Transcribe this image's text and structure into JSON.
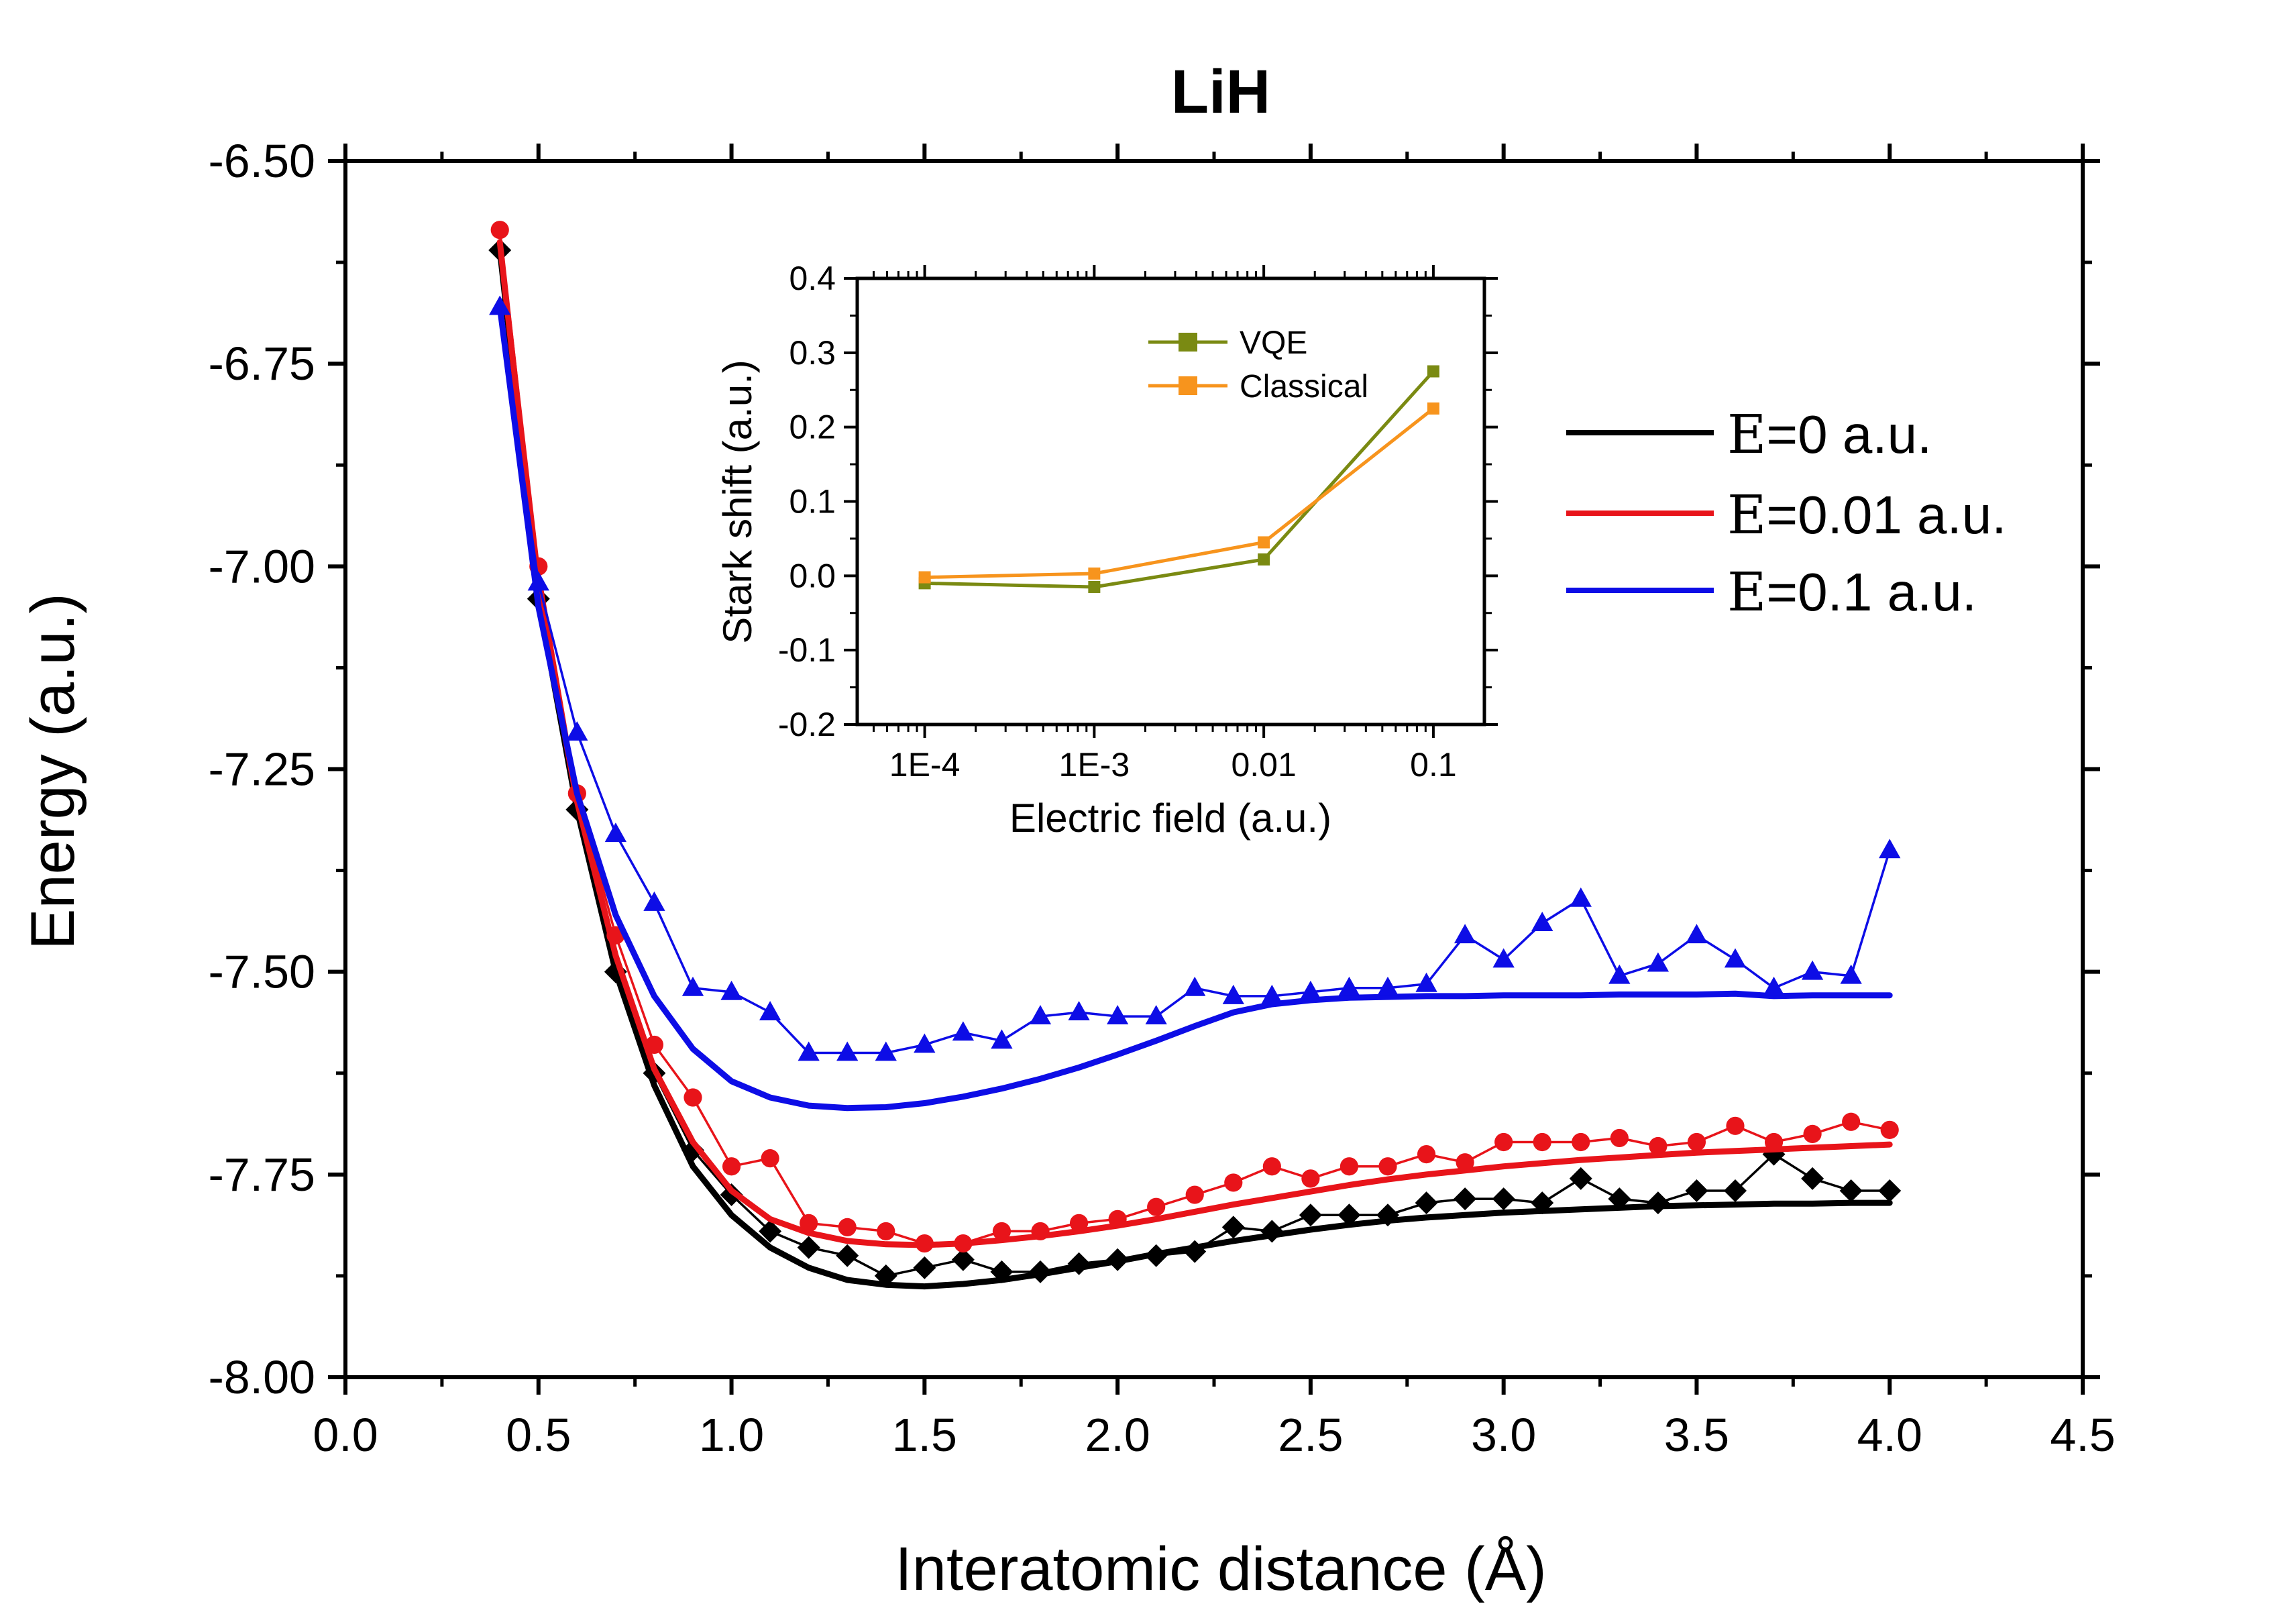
{
  "chart_data": [
    {
      "type": "line",
      "title": "LiH",
      "xlabel": "Interatomic distance (Å)",
      "ylabel": "Energy (a.u.)",
      "xlim": [
        0.0,
        4.5
      ],
      "ylim": [
        -8.0,
        -6.5
      ],
      "xticks": [
        "0.0",
        "0.5",
        "1.0",
        "1.5",
        "2.0",
        "2.5",
        "3.0",
        "3.5",
        "4.0",
        "4.5"
      ],
      "yticks": [
        "-6.50",
        "-6.75",
        "-7.00",
        "-7.25",
        "-7.50",
        "-7.75",
        "-8.00"
      ],
      "legend_position": "right",
      "series": [
        {
          "name": "E=0 a.u.",
          "legend_symbol": "E",
          "legend_text": "=0 a.u.",
          "kind": "exact",
          "color": "#000000",
          "x": [
            0.4,
            0.5,
            0.6,
            0.7,
            0.8,
            0.9,
            1.0,
            1.1,
            1.2,
            1.3,
            1.4,
            1.5,
            1.6,
            1.7,
            1.8,
            1.9,
            2.0,
            2.1,
            2.2,
            2.3,
            2.4,
            2.5,
            2.6,
            2.7,
            2.8,
            2.9,
            3.0,
            3.1,
            3.2,
            3.3,
            3.4,
            3.5,
            3.6,
            3.7,
            3.8,
            3.9,
            4.0
          ],
          "y": [
            -6.61,
            -7.04,
            -7.3,
            -7.5,
            -7.64,
            -7.74,
            -7.8,
            -7.84,
            -7.865,
            -7.88,
            -7.886,
            -7.888,
            -7.885,
            -7.88,
            -7.873,
            -7.865,
            -7.857,
            -7.848,
            -7.84,
            -7.832,
            -7.825,
            -7.818,
            -7.812,
            -7.807,
            -7.803,
            -7.8,
            -7.797,
            -7.795,
            -7.793,
            -7.791,
            -7.789,
            -7.788,
            -7.787,
            -7.786,
            -7.786,
            -7.785,
            -7.785
          ]
        },
        {
          "name": "E=0 VQE",
          "kind": "vqe",
          "marker": "diamond",
          "color": "#000000",
          "x": [
            0.4,
            0.5,
            0.6,
            0.7,
            0.8,
            0.9,
            1.0,
            1.1,
            1.2,
            1.3,
            1.4,
            1.5,
            1.6,
            1.7,
            1.8,
            1.9,
            2.0,
            2.1,
            2.2,
            2.3,
            2.4,
            2.5,
            2.6,
            2.7,
            2.8,
            2.9,
            3.0,
            3.1,
            3.2,
            3.3,
            3.4,
            3.5,
            3.6,
            3.7,
            3.8,
            3.9,
            4.0
          ],
          "y": [
            -6.61,
            -7.04,
            -7.3,
            -7.5,
            -7.625,
            -7.72,
            -7.775,
            -7.82,
            -7.84,
            -7.85,
            -7.875,
            -7.865,
            -7.855,
            -7.87,
            -7.87,
            -7.86,
            -7.855,
            -7.85,
            -7.845,
            -7.815,
            -7.82,
            -7.8,
            -7.8,
            -7.8,
            -7.785,
            -7.78,
            -7.78,
            -7.785,
            -7.755,
            -7.78,
            -7.785,
            -7.77,
            -7.77,
            -7.725,
            -7.755,
            -7.77,
            -7.77
          ]
        },
        {
          "name": "E=0.01 a.u.",
          "legend_symbol": "E",
          "legend_text": "=0.01 a.u.",
          "kind": "exact",
          "color": "#e8141a",
          "x": [
            0.4,
            0.5,
            0.6,
            0.7,
            0.8,
            0.9,
            1.0,
            1.1,
            1.2,
            1.3,
            1.4,
            1.5,
            1.6,
            1.7,
            1.8,
            1.9,
            2.0,
            2.1,
            2.2,
            2.3,
            2.4,
            2.5,
            2.6,
            2.7,
            2.8,
            2.9,
            3.0,
            3.1,
            3.2,
            3.3,
            3.4,
            3.5,
            3.6,
            3.7,
            3.8,
            3.9,
            4.0
          ],
          "y": [
            -6.6,
            -7.03,
            -7.29,
            -7.48,
            -7.62,
            -7.71,
            -7.77,
            -7.805,
            -7.822,
            -7.832,
            -7.836,
            -7.837,
            -7.835,
            -7.831,
            -7.826,
            -7.82,
            -7.813,
            -7.805,
            -7.796,
            -7.787,
            -7.779,
            -7.771,
            -7.763,
            -7.756,
            -7.75,
            -7.745,
            -7.74,
            -7.736,
            -7.732,
            -7.729,
            -7.726,
            -7.723,
            -7.721,
            -7.719,
            -7.717,
            -7.715,
            -7.713
          ]
        },
        {
          "name": "E=0.01 VQE",
          "kind": "vqe",
          "marker": "circle",
          "color": "#e8141a",
          "x": [
            0.4,
            0.5,
            0.6,
            0.7,
            0.8,
            0.9,
            1.0,
            1.1,
            1.2,
            1.3,
            1.4,
            1.5,
            1.6,
            1.7,
            1.8,
            1.9,
            2.0,
            2.1,
            2.2,
            2.3,
            2.4,
            2.5,
            2.6,
            2.7,
            2.8,
            2.9,
            3.0,
            3.1,
            3.2,
            3.3,
            3.4,
            3.5,
            3.6,
            3.7,
            3.8,
            3.9,
            4.0
          ],
          "y": [
            -6.585,
            -7.0,
            -7.28,
            -7.455,
            -7.59,
            -7.655,
            -7.74,
            -7.73,
            -7.81,
            -7.815,
            -7.82,
            -7.835,
            -7.835,
            -7.82,
            -7.82,
            -7.81,
            -7.805,
            -7.79,
            -7.775,
            -7.76,
            -7.74,
            -7.755,
            -7.74,
            -7.74,
            -7.725,
            -7.735,
            -7.71,
            -7.71,
            -7.71,
            -7.705,
            -7.715,
            -7.71,
            -7.69,
            -7.71,
            -7.7,
            -7.685,
            -7.695
          ]
        },
        {
          "name": "E=0.1 a.u.",
          "legend_symbol": "E",
          "legend_text": "=0.1 a.u.",
          "kind": "exact",
          "color": "#0d0de6",
          "x": [
            0.4,
            0.5,
            0.6,
            0.7,
            0.8,
            0.9,
            1.0,
            1.1,
            1.2,
            1.3,
            1.4,
            1.5,
            1.6,
            1.7,
            1.8,
            1.9,
            2.0,
            2.1,
            2.2,
            2.3,
            2.4,
            2.5,
            2.6,
            2.7,
            2.8,
            2.9,
            3.0,
            3.1,
            3.2,
            3.3,
            3.4,
            3.5,
            3.6,
            3.7,
            3.8,
            3.9,
            4.0
          ],
          "y": [
            -6.68,
            -7.05,
            -7.28,
            -7.43,
            -7.53,
            -7.595,
            -7.635,
            -7.655,
            -7.665,
            -7.668,
            -7.667,
            -7.662,
            -7.654,
            -7.644,
            -7.632,
            -7.618,
            -7.602,
            -7.585,
            -7.567,
            -7.55,
            -7.54,
            -7.535,
            -7.532,
            -7.531,
            -7.53,
            -7.53,
            -7.529,
            -7.529,
            -7.529,
            -7.528,
            -7.528,
            -7.528,
            -7.527,
            -7.53,
            -7.529,
            -7.529,
            -7.529
          ]
        },
        {
          "name": "E=0.1 VQE",
          "kind": "vqe",
          "marker": "triangle",
          "color": "#0d0de6",
          "x": [
            0.4,
            0.5,
            0.6,
            0.7,
            0.8,
            0.9,
            1.0,
            1.1,
            1.2,
            1.3,
            1.4,
            1.5,
            1.6,
            1.7,
            1.8,
            1.9,
            2.0,
            2.1,
            2.2,
            2.3,
            2.4,
            2.5,
            2.6,
            2.7,
            2.8,
            2.9,
            3.0,
            3.1,
            3.2,
            3.3,
            3.4,
            3.5,
            3.6,
            3.7,
            3.8,
            3.9,
            4.0
          ],
          "y": [
            -6.68,
            -7.02,
            -7.205,
            -7.33,
            -7.415,
            -7.52,
            -7.525,
            -7.55,
            -7.6,
            -7.6,
            -7.6,
            -7.59,
            -7.575,
            -7.585,
            -7.555,
            -7.55,
            -7.555,
            -7.555,
            -7.52,
            -7.53,
            -7.53,
            -7.525,
            -7.52,
            -7.52,
            -7.515,
            -7.455,
            -7.485,
            -7.44,
            -7.41,
            -7.505,
            -7.49,
            -7.455,
            -7.485,
            -7.52,
            -7.5,
            -7.505,
            -7.35
          ]
        }
      ]
    },
    {
      "type": "line",
      "title": "",
      "xlabel": "Electric field (a.u.)",
      "ylabel": "Stark shift (a.u.)",
      "xscale": "log",
      "xlim": [
        4e-05,
        0.2
      ],
      "ylim": [
        -0.2,
        0.4
      ],
      "xticks": [
        "1E-4",
        "1E-3",
        "0.01",
        "0.1"
      ],
      "yticks": [
        "-0.2",
        "-0.1",
        "0.0",
        "0.1",
        "0.2",
        "0.3",
        "0.4"
      ],
      "legend_position": "top-left",
      "series": [
        {
          "name": "VQE",
          "color": "#7a8a12",
          "marker": "square",
          "x": [
            0.0001,
            0.001,
            0.01,
            0.1
          ],
          "y": [
            -0.01,
            -0.015,
            0.022,
            0.275
          ]
        },
        {
          "name": "Classical",
          "color": "#f7941d",
          "marker": "square",
          "x": [
            0.0001,
            0.001,
            0.01,
            0.1
          ],
          "y": [
            -0.002,
            0.003,
            0.045,
            0.225
          ]
        }
      ]
    }
  ]
}
